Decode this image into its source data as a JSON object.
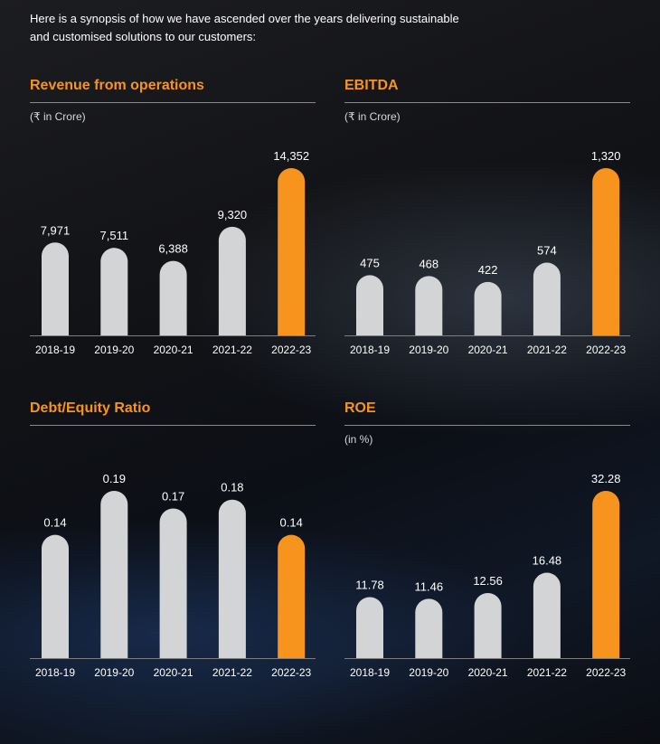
{
  "intro": {
    "line1": "Here is a synopsis of how we have ascended over the years delivering sustainable",
    "line2": "and customised solutions to our customers:"
  },
  "colors": {
    "bar": "#d3d4d6",
    "highlight": "#f7941d",
    "label": "#ffffff",
    "tick": "#ffffff"
  },
  "chart_data": [
    {
      "type": "bar",
      "title": "Revenue from operations",
      "unit": "(₹ in Crore)",
      "categories": [
        "2018-19",
        "2019-20",
        "2020-21",
        "2021-22",
        "2022-23"
      ],
      "values": [
        7971,
        7511,
        6388,
        9320,
        14352
      ],
      "labels": [
        "7,971",
        "7,511",
        "6,388",
        "9,320",
        "14,352"
      ],
      "highlight_index": 4,
      "ylim": [
        0,
        14352
      ]
    },
    {
      "type": "bar",
      "title": "EBITDA",
      "unit": "(₹ in Crore)",
      "categories": [
        "2018-19",
        "2019-20",
        "2020-21",
        "2021-22",
        "2022-23"
      ],
      "values": [
        475,
        468,
        422,
        574,
        1320
      ],
      "labels": [
        "475",
        "468",
        "422",
        "574",
        "1,320"
      ],
      "highlight_index": 4,
      "ylim": [
        0,
        1320
      ]
    },
    {
      "type": "bar",
      "title": "Debt/Equity Ratio",
      "unit": "",
      "categories": [
        "2018-19",
        "2019-20",
        "2020-21",
        "2021-22",
        "2022-23"
      ],
      "values": [
        0.14,
        0.19,
        0.17,
        0.18,
        0.14
      ],
      "labels": [
        "0.14",
        "0.19",
        "0.17",
        "0.18",
        "0.14"
      ],
      "highlight_index": 4,
      "ylim": [
        0,
        0.19
      ]
    },
    {
      "type": "bar",
      "title": "ROE",
      "unit": "(in %)",
      "categories": [
        "2018-19",
        "2019-20",
        "2020-21",
        "2021-22",
        "2022-23"
      ],
      "values": [
        11.78,
        11.46,
        12.56,
        16.48,
        32.28
      ],
      "labels": [
        "11.78",
        "11.46",
        "12.56",
        "16.48",
        "32.28"
      ],
      "highlight_index": 4,
      "ylim": [
        0,
        32.28
      ]
    }
  ]
}
